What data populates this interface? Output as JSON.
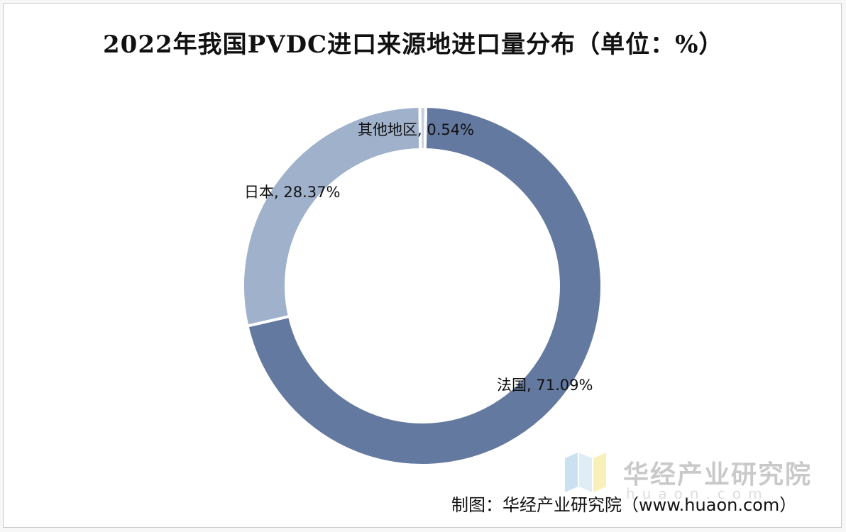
{
  "chart_data": {
    "type": "pie",
    "variant": "donut",
    "title": "2022年我国PVDC进口来源地进口量分布（单位：%）",
    "slices": [
      {
        "name": "法国",
        "value": 71.09,
        "label": "法国, 71.09%",
        "color": "#63799f"
      },
      {
        "name": "日本",
        "value": 28.37,
        "label": "日本, 28.37%",
        "color": "#9fb1cb"
      },
      {
        "name": "其他地区",
        "value": 0.54,
        "label": "其他地区, 0.54%",
        "color": "#c5d1e2"
      }
    ],
    "legend": "none"
  },
  "watermark": {
    "text": "华经产业研究院",
    "url": "huaon.com"
  },
  "source": "制图：华经产业研究院（www.huaon.com）"
}
